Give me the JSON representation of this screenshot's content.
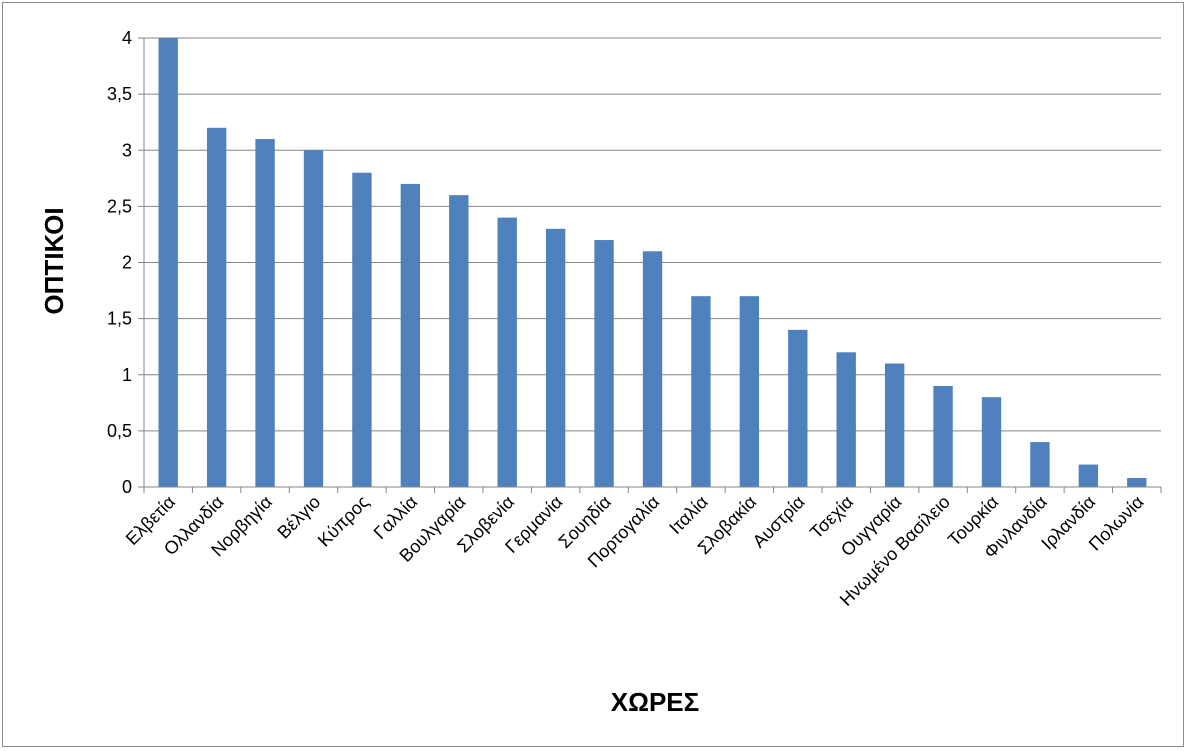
{
  "chart_data": {
    "type": "bar",
    "xlabel": "ΧΩΡΕΣ",
    "ylabel": "ΟΠΤΙΚΟΙ",
    "ylim": [
      0,
      4
    ],
    "yticks": [
      "0",
      "0,5",
      "1",
      "1,5",
      "2",
      "2,5",
      "3",
      "3,5",
      "4"
    ],
    "ytick_values": [
      0,
      0.5,
      1,
      1.5,
      2,
      2.5,
      3,
      3.5,
      4
    ],
    "grid": true,
    "categories": [
      "Ελβετία",
      "Ολλανδία",
      "Νορβηγία",
      "Βέλγιο",
      "Κύπρος",
      "Γαλλία",
      "Βουλγαρία",
      "Σλοβενία",
      "Γερμανία",
      "Σουηδία",
      "Πορτογαλία",
      "Ιταλία",
      "Σλοβακία",
      "Αυστρία",
      "Τσεχία",
      "Ουγγαρία",
      "Ηνωμένο Βασίλειο",
      "Τουρκία",
      "Φινλανδία",
      "Ιρλανδία",
      "Πολωνία"
    ],
    "values": [
      4.0,
      3.2,
      3.1,
      3.0,
      2.8,
      2.7,
      2.6,
      2.4,
      2.3,
      2.2,
      2.1,
      1.7,
      1.7,
      1.4,
      1.2,
      1.1,
      0.9,
      0.8,
      0.4,
      0.2,
      0.08
    ],
    "colors": {
      "bar": "#4f81bd",
      "grid": "#868686",
      "axis": "#868686"
    }
  }
}
